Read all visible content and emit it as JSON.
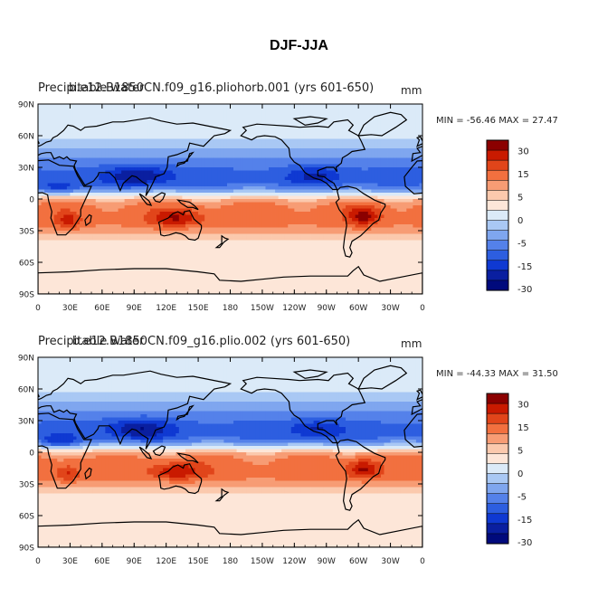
{
  "figure": {
    "title": "DJF-JJA",
    "background": "#ffffff"
  },
  "chart_data": [
    {
      "type": "heatmap",
      "title_overlay_1": "Precipitable water",
      "title_overlay_2": "b.e12.B1850CN.f09_g16.pliohorb.001 (yrs 601-650)",
      "units": "mm",
      "stats_text": "MIN = -56.46 MAX =  27.47",
      "min": -56.46,
      "max": 27.47,
      "x_ticks": [
        "0",
        "30E",
        "60E",
        "90E",
        "120E",
        "150E",
        "180",
        "150W",
        "120W",
        "90W",
        "60W",
        "30W",
        "0"
      ],
      "y_ticks": [
        "90N",
        "60N",
        "30N",
        "0",
        "30S",
        "60S",
        "90S"
      ],
      "xlim": [
        0,
        360
      ],
      "ylim": [
        -90,
        90
      ],
      "contour_levels": [
        -35,
        -30,
        -25,
        -20,
        -15,
        -10,
        -5,
        0,
        5,
        10,
        15,
        20,
        25,
        30,
        35
      ]
    },
    {
      "type": "heatmap",
      "title_overlay_1": "Precipitable water",
      "title_overlay_2": "b.e12.B1850CN.f09_g16.plio.002 (yrs 601-650)",
      "units": "mm",
      "stats_text": "MIN = -44.33 MAX =  31.50",
      "min": -44.33,
      "max": 31.5,
      "x_ticks": [
        "0",
        "30E",
        "60E",
        "90E",
        "120E",
        "150E",
        "180",
        "150W",
        "120W",
        "90W",
        "60W",
        "30W",
        "0"
      ],
      "y_ticks": [
        "90N",
        "60N",
        "30N",
        "0",
        "30S",
        "60S",
        "90S"
      ],
      "xlim": [
        0,
        360
      ],
      "ylim": [
        -90,
        90
      ],
      "contour_levels": [
        -35,
        -30,
        -25,
        -20,
        -15,
        -10,
        -5,
        0,
        5,
        10,
        15,
        20,
        25,
        30,
        35
      ]
    }
  ],
  "colorbar": {
    "labels": [
      "30",
      "15",
      "5",
      "0",
      "-5",
      "-15",
      "-30"
    ],
    "colors": [
      "#8b0000",
      "#c91a00",
      "#e1451a",
      "#f2703f",
      "#f79c74",
      "#fbc9ad",
      "#fde6d8",
      "#dbeaf8",
      "#a9c8f4",
      "#7fa6ef",
      "#5481ea",
      "#2d5ee0",
      "#0f39d2",
      "#0a1fa0",
      "#000a7c"
    ]
  },
  "palette": {
    "land_line": "#000000",
    "positive": "#e1451a",
    "negative": "#2d5ee0"
  }
}
